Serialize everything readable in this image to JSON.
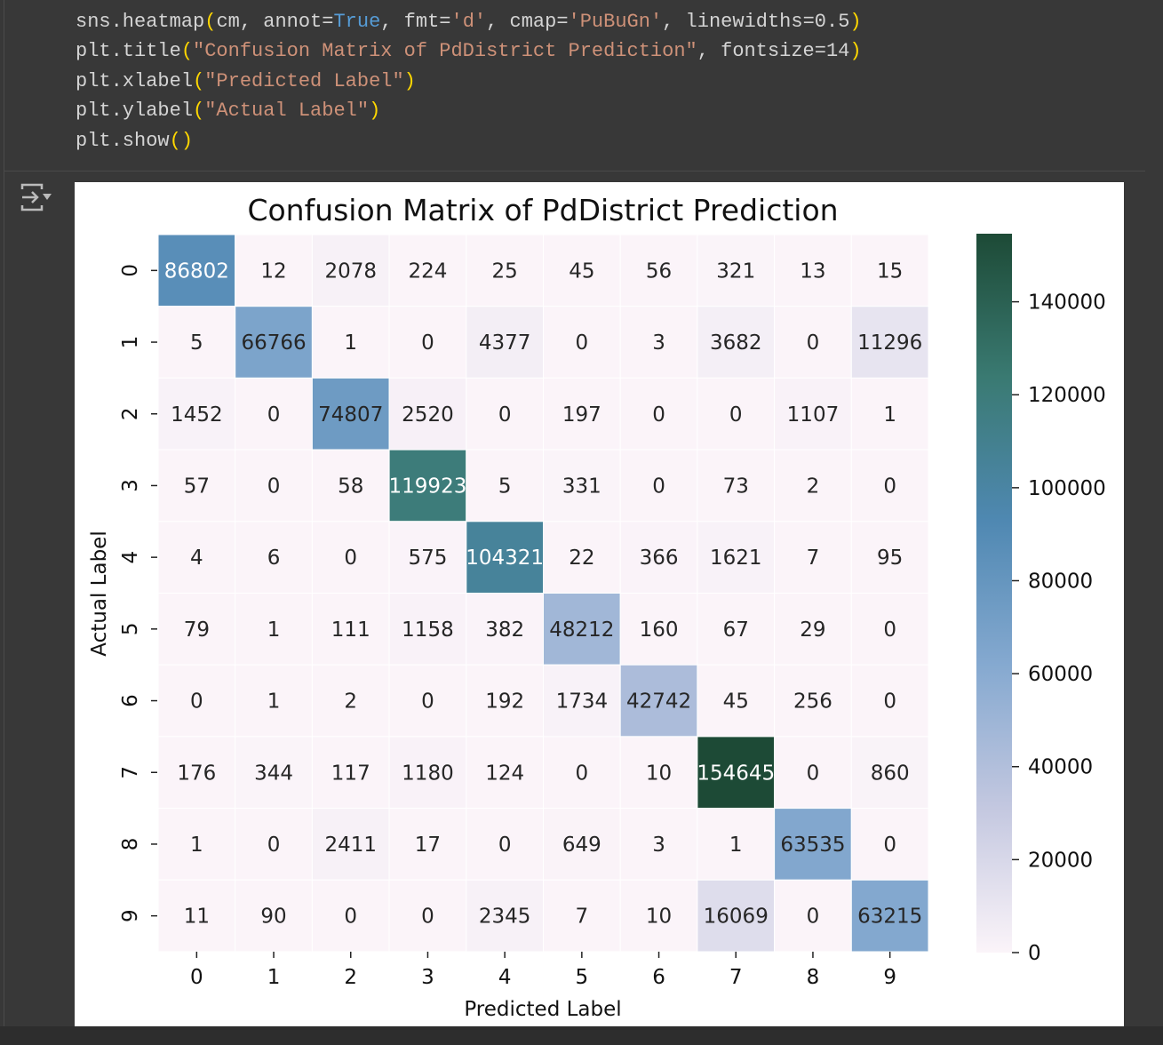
{
  "code_lines": [
    [
      [
        "sns.heatmap",
        ""
      ],
      [
        "(",
        "par"
      ],
      [
        "cm, annot=",
        ""
      ],
      [
        "True",
        "kw"
      ],
      [
        ", fmt=",
        ""
      ],
      [
        "'d'",
        "str"
      ],
      [
        ", cmap=",
        ""
      ],
      [
        "'PuBuGn'",
        "str"
      ],
      [
        ", linewidths=0.5",
        ""
      ],
      [
        ")",
        "par"
      ]
    ],
    [
      [
        "plt.title",
        ""
      ],
      [
        "(",
        "par"
      ],
      [
        "\"Confusion Matrix of PdDistrict Prediction\"",
        "str"
      ],
      [
        ", fontsize=14",
        ""
      ],
      [
        ")",
        "par"
      ]
    ],
    [
      [
        "plt.xlabel",
        ""
      ],
      [
        "(",
        "par"
      ],
      [
        "\"Predicted Label\"",
        "str"
      ],
      [
        ")",
        "par"
      ]
    ],
    [
      [
        "plt.ylabel",
        ""
      ],
      [
        "(",
        "par"
      ],
      [
        "\"Actual Label\"",
        "str"
      ],
      [
        ")",
        "par"
      ]
    ],
    [
      [
        "plt.show",
        ""
      ],
      [
        "()",
        "par"
      ]
    ]
  ],
  "icons": {
    "output": "output-collapse-icon"
  },
  "colors": {
    "cmap": [
      "#fbf4f9",
      "#c4c8e0",
      "#85a9d0",
      "#4f88b2",
      "#3a7a72",
      "#1d4a36"
    ]
  },
  "chart_data": {
    "type": "heatmap",
    "title": "Confusion Matrix of PdDistrict Prediction",
    "xlabel": "Predicted Label",
    "ylabel": "Actual Label",
    "x_ticks": [
      "0",
      "1",
      "2",
      "3",
      "4",
      "5",
      "6",
      "7",
      "8",
      "9"
    ],
    "y_ticks": [
      "0",
      "1",
      "2",
      "3",
      "4",
      "5",
      "6",
      "7",
      "8",
      "9"
    ],
    "values": [
      [
        86802,
        12,
        2078,
        224,
        25,
        45,
        56,
        321,
        13,
        15
      ],
      [
        5,
        66766,
        1,
        0,
        4377,
        0,
        3,
        3682,
        0,
        11296
      ],
      [
        1452,
        0,
        74807,
        2520,
        0,
        197,
        0,
        0,
        1107,
        1
      ],
      [
        57,
        0,
        58,
        119923,
        5,
        331,
        0,
        73,
        2,
        0
      ],
      [
        4,
        6,
        0,
        575,
        104321,
        22,
        366,
        1621,
        7,
        95
      ],
      [
        79,
        1,
        111,
        1158,
        382,
        48212,
        160,
        67,
        29,
        0
      ],
      [
        0,
        1,
        2,
        0,
        192,
        1734,
        42742,
        45,
        256,
        0
      ],
      [
        176,
        344,
        117,
        1180,
        124,
        0,
        10,
        154645,
        0,
        860
      ],
      [
        1,
        0,
        2411,
        17,
        0,
        649,
        3,
        1,
        63535,
        0
      ],
      [
        11,
        90,
        0,
        0,
        2345,
        7,
        10,
        16069,
        0,
        63215
      ]
    ],
    "colorbar": {
      "min": 0,
      "max": 154645,
      "ticks": [
        "0",
        "20000",
        "40000",
        "60000",
        "80000",
        "100000",
        "120000",
        "140000"
      ]
    }
  }
}
